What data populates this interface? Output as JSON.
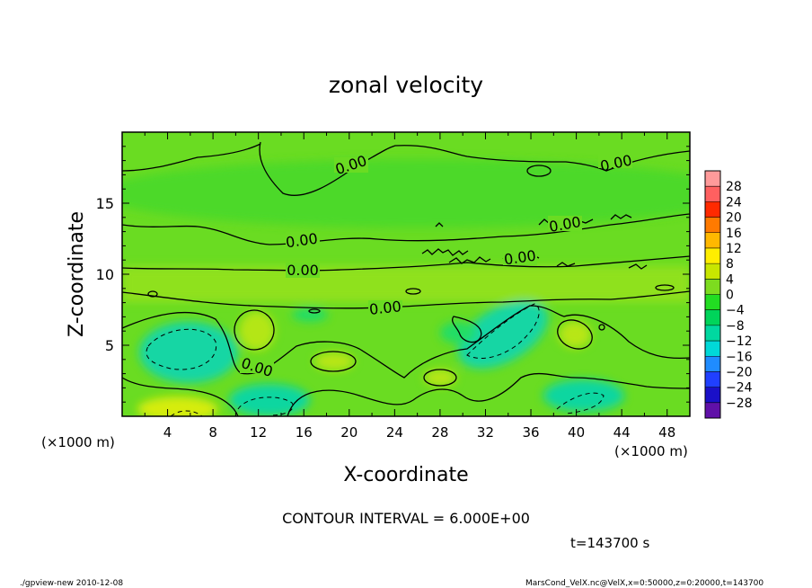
{
  "chart_data": {
    "type": "heatmap",
    "title": "zonal velocity",
    "xlabel": "X-coordinate",
    "ylabel": "Z-coordinate",
    "x_unit_note": "(×1000 m)",
    "x_unit_note_right": "(×1000 m)",
    "xlim": [
      0,
      50
    ],
    "ylim": [
      0,
      20
    ],
    "x_ticks": [
      4,
      8,
      12,
      16,
      20,
      24,
      28,
      32,
      36,
      40,
      44,
      48
    ],
    "y_ticks": [
      5,
      10,
      15
    ],
    "colorbar": {
      "labels": [
        "28",
        "24",
        "20",
        "16",
        "12",
        "8",
        "4",
        "0",
        "−4",
        "−8",
        "−12",
        "−16",
        "−20",
        "−24",
        "−28"
      ],
      "colors": [
        "#ff9a9a",
        "#ff6060",
        "#ff2a00",
        "#ff7a00",
        "#ffb800",
        "#ffee00",
        "#c8e600",
        "#7ddc1f",
        "#22dd22",
        "#00d45a",
        "#00d8a0",
        "#00d8d8",
        "#1f8cff",
        "#2040ff",
        "#1a10c8",
        "#6010a8"
      ]
    },
    "contour_labels": [
      {
        "text": "0.00",
        "x": 20.1,
        "z": 17.2
      },
      {
        "text": "0.00",
        "x": 43.5,
        "z": 17.8
      },
      {
        "text": "0.00",
        "x": 38.8,
        "z": 13.5
      },
      {
        "text": "0.00",
        "x": 15.8,
        "z": 12.5
      },
      {
        "text": "0.00",
        "x": 35.5,
        "z": 11.0
      },
      {
        "text": "0.00",
        "x": 15.8,
        "z": 10.2
      },
      {
        "text": "0.00",
        "x": 23.3,
        "z": 7.7
      },
      {
        "text": "0.00",
        "x": 11.8,
        "z": 3.2
      }
    ],
    "contour_interval": "CONTOUR INTERVAL = 6.000E+00",
    "time_label": "t=143700 s"
  },
  "footer": {
    "left": "./gpview-new  2010-12-08",
    "right": "MarsCond_VelX.nc@VelX,x=0:50000,z=0:20000,t=143700"
  }
}
